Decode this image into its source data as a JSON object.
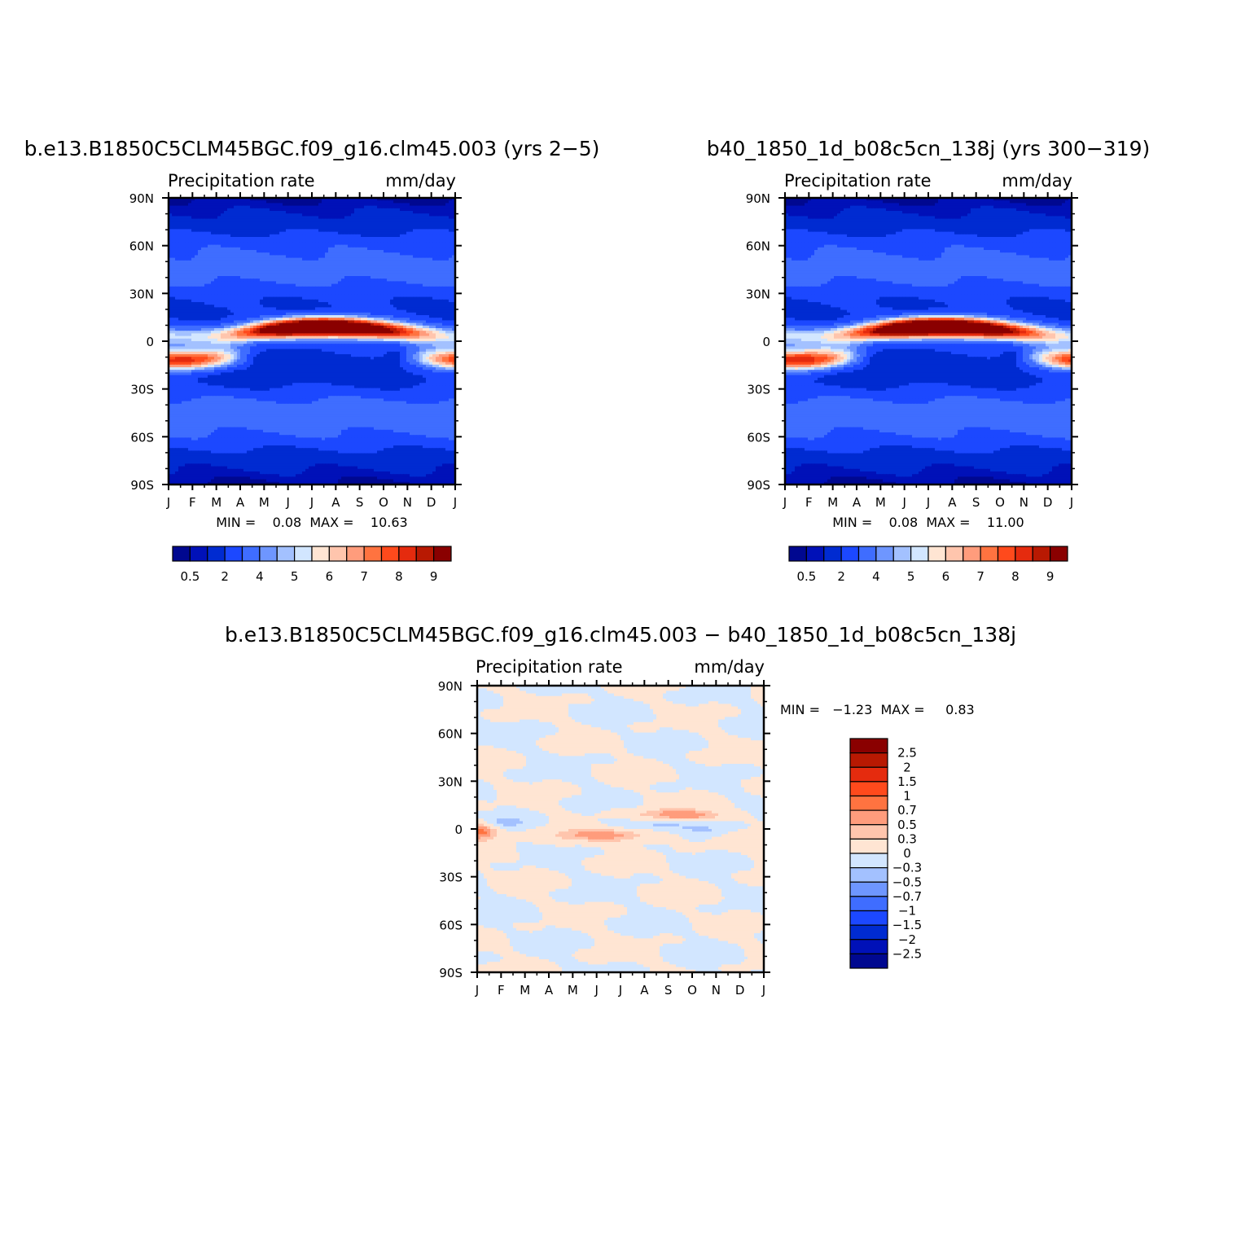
{
  "palette": {
    "seq": [
      "#000890",
      "#0011b8",
      "#002bd1",
      "#1c48ff",
      "#3f6dff",
      "#6e96ff",
      "#a3c1ff",
      "#d2e6ff",
      "#ffe5d3",
      "#ffc5ad",
      "#ff9c7c",
      "#ff7340",
      "#ff4a1c",
      "#e52b0e",
      "#b81902",
      "#8a0000"
    ],
    "diff": [
      "#8a0000",
      "#b81902",
      "#e52b0e",
      "#ff4a1c",
      "#ff7340",
      "#ff9c7c",
      "#ffc5ad",
      "#ffe5d3",
      "#d2e6ff",
      "#a3c1ff",
      "#6e96ff",
      "#3f6dff",
      "#1c48ff",
      "#002bd1",
      "#0011b8",
      "#000890"
    ]
  },
  "chart_data": [
    {
      "type": "heatmap",
      "title": "b.e13.B1850C5CLM45BGC.f09_g16.clm45.003 (yrs 2−5)",
      "left_label": "Precipitation rate",
      "right_label": "mm/day",
      "x_ticks": [
        "J",
        "F",
        "M",
        "A",
        "M",
        "J",
        "J",
        "A",
        "S",
        "O",
        "N",
        "D",
        "J"
      ],
      "y_ticks": [
        "90N",
        "60N",
        "30N",
        "0",
        "30S",
        "60S",
        "90S"
      ],
      "stats_text": "MIN =    0.08  MAX =    10.63",
      "colorbar_labels": [
        "0.5",
        "2",
        "4",
        "5",
        "6",
        "7",
        "8",
        "9"
      ],
      "min": 0.08,
      "max": 10.63,
      "features": {
        "itcz_peak": 10.63,
        "sh_band": 6.8
      }
    },
    {
      "type": "heatmap",
      "title": "b40_1850_1d_b08c5cn_138j (yrs 300−319)",
      "left_label": "Precipitation rate",
      "right_label": "mm/day",
      "x_ticks": [
        "J",
        "F",
        "M",
        "A",
        "M",
        "J",
        "J",
        "A",
        "S",
        "O",
        "N",
        "D",
        "J"
      ],
      "y_ticks": [
        "90N",
        "60N",
        "30N",
        "0",
        "30S",
        "60S",
        "90S"
      ],
      "stats_text": "MIN =    0.08  MAX =    11.00",
      "colorbar_labels": [
        "0.5",
        "2",
        "4",
        "5",
        "6",
        "7",
        "8",
        "9"
      ],
      "min": 0.08,
      "max": 11.0,
      "features": {
        "itcz_peak": 11.0,
        "sh_band": 7.0
      }
    },
    {
      "type": "heatmap",
      "title": "b.e13.B1850C5CLM45BGC.f09_g16.clm45.003 − b40_1850_1d_b08c5cn_138j",
      "left_label": "Precipitation rate",
      "right_label": "mm/day",
      "x_ticks": [
        "J",
        "F",
        "M",
        "A",
        "M",
        "J",
        "J",
        "A",
        "S",
        "O",
        "N",
        "D",
        "J"
      ],
      "y_ticks": [
        "90N",
        "60N",
        "30N",
        "0",
        "30S",
        "60S",
        "90S"
      ],
      "stats_text": "MIN =   −1.23  MAX =     0.83",
      "colorbar_labels": [
        "2.5",
        "2",
        "1.5",
        "1",
        "0.7",
        "0.5",
        "0.3",
        "0",
        "−0.3",
        "−0.5",
        "−0.7",
        "−1",
        "−1.5",
        "−2",
        "−2.5"
      ],
      "min": -1.23,
      "max": 0.83
    }
  ]
}
